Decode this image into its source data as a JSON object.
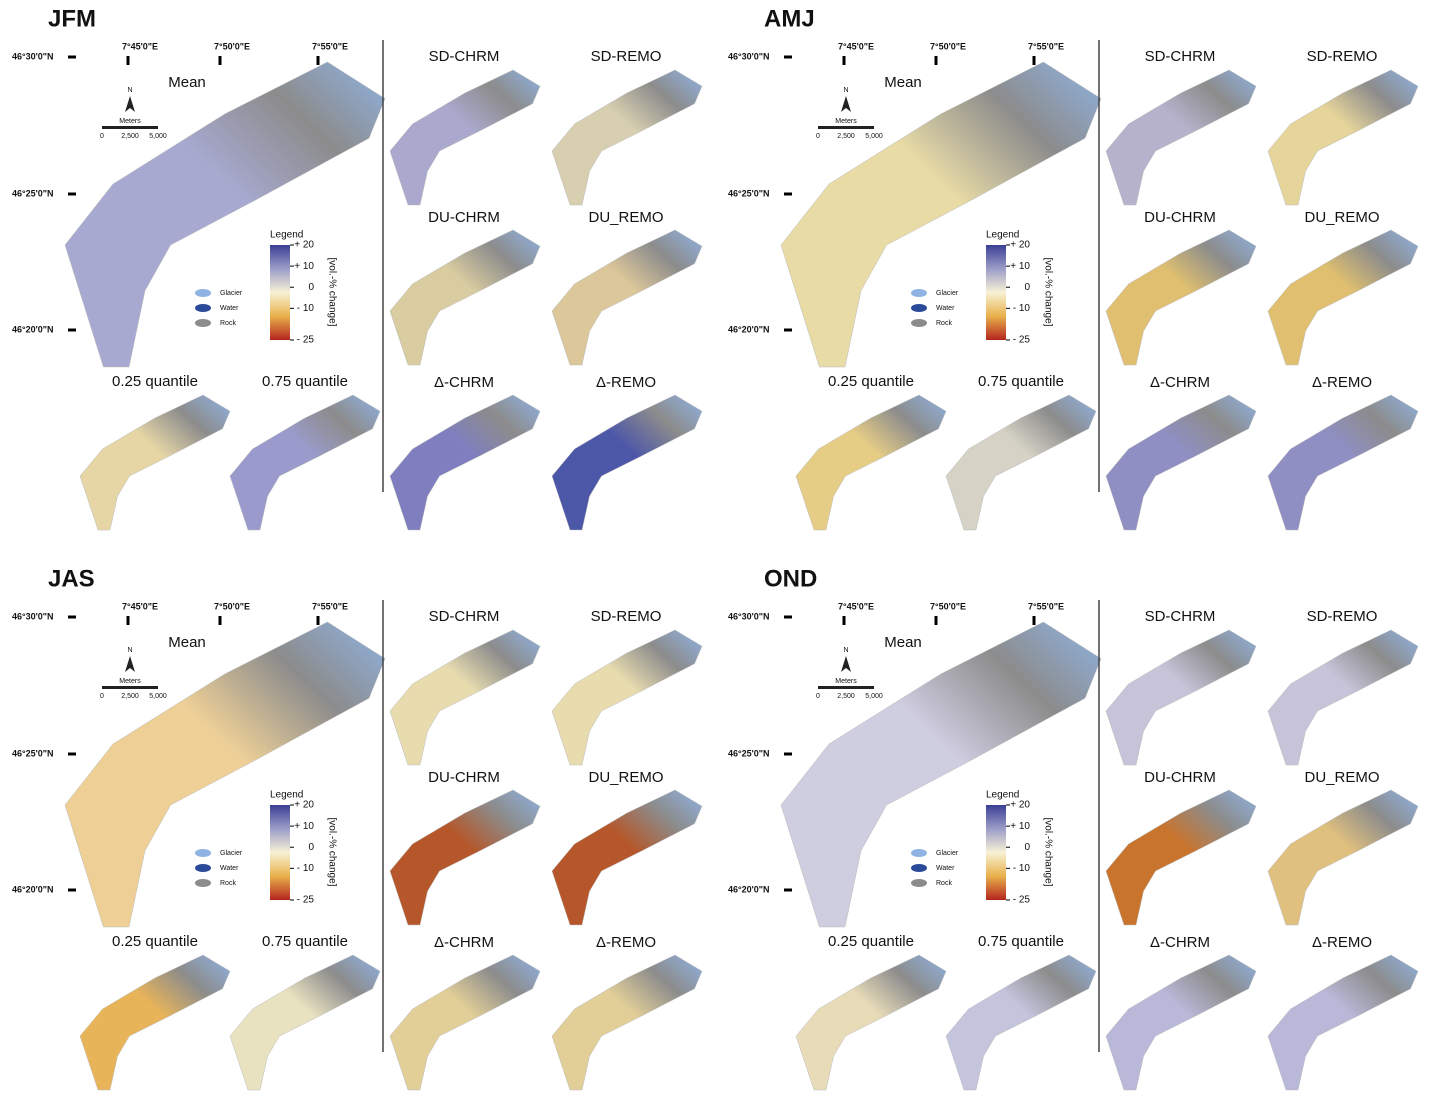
{
  "coords": {
    "lon_labels": [
      "7°45'0\"E",
      "7°50'0\"E",
      "7°55'0\"E"
    ],
    "lat_labels": [
      "46°30'0\"N",
      "46°25'0\"N",
      "46°20'0\"N"
    ]
  },
  "north": "N",
  "scale": {
    "unit": "Meters",
    "ticks": [
      "0",
      "2,500",
      "5,000"
    ]
  },
  "legend": {
    "title": "Legend",
    "axis_label": "[vol.-% change]",
    "lim": [
      -25,
      20
    ],
    "ticks": [
      {
        "value": 20,
        "label": "+ 20"
      },
      {
        "value": 10,
        "label": "+ 10"
      },
      0,
      {
        "value": -10,
        "label": "- 10"
      },
      {
        "value": -25,
        "label": "- 25"
      }
    ],
    "colors": [
      "#3b3f94",
      "#9c9cc9",
      "#f7f2d5",
      "#e8b04a",
      "#b3261e"
    ],
    "cover": [
      {
        "name": "Glacier",
        "color": "#8fb3e3"
      },
      {
        "name": "Water",
        "color": "#2b4a9a"
      },
      {
        "name": "Rock",
        "color": "#8c8c8c"
      }
    ]
  },
  "panels": [
    {
      "title": "JFM",
      "maps": [
        {
          "label": "Mean",
          "color": "#a7a9d0"
        },
        {
          "label": "0.25 quantile",
          "color": "#e6d6a6"
        },
        {
          "label": "0.75 quantile",
          "color": "#9a9bcc"
        },
        {
          "label": "SD-CHRM",
          "color": "#aaa8cc"
        },
        {
          "label": "SD-REMO",
          "color": "#d8cfb0"
        },
        {
          "label": "DU-CHRM",
          "color": "#d9cca0"
        },
        {
          "label": "DU_REMO",
          "color": "#dcc79a"
        },
        {
          "label": "Δ-CHRM",
          "color": "#7f7fc0"
        },
        {
          "label": "Δ-REMO",
          "color": "#4c57a8"
        }
      ]
    },
    {
      "title": "AMJ",
      "maps": [
        {
          "label": "Mean",
          "color": "#e8dba6"
        },
        {
          "label": "0.25 quantile",
          "color": "#e6cd86"
        },
        {
          "label": "0.75 quantile",
          "color": "#d6d3c6"
        },
        {
          "label": "SD-CHRM",
          "color": "#b6b2cc"
        },
        {
          "label": "SD-REMO",
          "color": "#e6d59a"
        },
        {
          "label": "DU-CHRM",
          "color": "#e0c070"
        },
        {
          "label": "DU_REMO",
          "color": "#e0c070"
        },
        {
          "label": "Δ-CHRM",
          "color": "#8f8fc4"
        },
        {
          "label": "Δ-REMO",
          "color": "#8f8fc4"
        }
      ]
    },
    {
      "title": "JAS",
      "maps": [
        {
          "label": "Mean",
          "color": "#eed097"
        },
        {
          "label": "0.25 quantile",
          "color": "#e8b45a"
        },
        {
          "label": "0.75 quantile",
          "color": "#e9e2c0"
        },
        {
          "label": "SD-CHRM",
          "color": "#e8dcaf"
        },
        {
          "label": "SD-REMO",
          "color": "#e8dcaf"
        },
        {
          "label": "DU-CHRM",
          "color": "#b5572a"
        },
        {
          "label": "DU_REMO",
          "color": "#b5572a"
        },
        {
          "label": "Δ-CHRM",
          "color": "#e2cf98"
        },
        {
          "label": "Δ-REMO",
          "color": "#e2cf98"
        }
      ]
    },
    {
      "title": "OND",
      "maps": [
        {
          "label": "Mean",
          "color": "#cfcde0"
        },
        {
          "label": "0.25 quantile",
          "color": "#e8dcb8"
        },
        {
          "label": "0.75 quantile",
          "color": "#c4c4dd"
        },
        {
          "label": "SD-CHRM",
          "color": "#c7c4d9"
        },
        {
          "label": "SD-REMO",
          "color": "#c7c4d9"
        },
        {
          "label": "DU-CHRM",
          "color": "#c9742d"
        },
        {
          "label": "DU_REMO",
          "color": "#e0c07e"
        },
        {
          "label": "Δ-CHRM",
          "color": "#b9b8d8"
        },
        {
          "label": "Δ-REMO",
          "color": "#b9b8d8"
        }
      ]
    }
  ]
}
